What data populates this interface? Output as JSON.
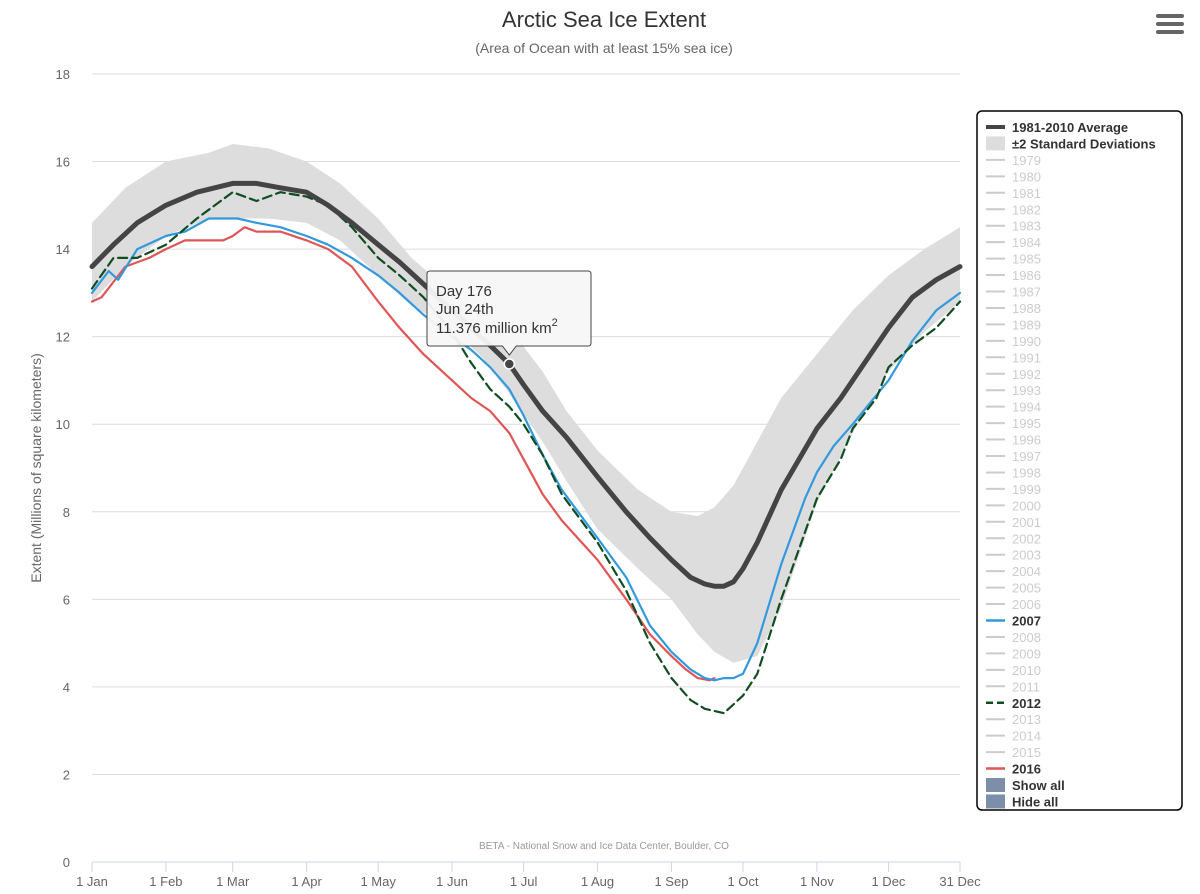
{
  "menu": {
    "icon": "hamburger-menu-icon"
  },
  "colors": {
    "average": "#444444",
    "band": "#dddddd",
    "y2007": "#3399dd",
    "y2012": "#114d22",
    "y2016": "#e05555",
    "dim": "#cccccc",
    "swatch": "#7d8fa8"
  },
  "tooltip": {
    "line1": "Day 176",
    "line2": "Jun 24th",
    "line3": "11.376 million km",
    "sup": "2"
  },
  "chart_data": {
    "type": "line",
    "title": "Arctic Sea Ice Extent",
    "subtitle": "(Area of Ocean with at least 15% sea ice)",
    "ylabel": "Extent (Millions of square kilometers)",
    "xlabel": "",
    "credit": "BETA - National Snow and Ice Data Center, Boulder, CO",
    "ylim": [
      0,
      18
    ],
    "xlim": [
      1,
      365
    ],
    "y_ticks": [
      0,
      2,
      4,
      6,
      8,
      10,
      12,
      14,
      16,
      18
    ],
    "y_tick_labels": [
      "0",
      "2",
      "4",
      "6",
      "8",
      "10",
      "12",
      "14",
      "16",
      "18"
    ],
    "x_ticks": [
      1,
      32,
      60,
      91,
      121,
      152,
      182,
      213,
      244,
      274,
      305,
      335,
      365
    ],
    "x_tick_labels": [
      "1 Jan",
      "1 Feb",
      "1 Mar",
      "1 Apr",
      "1 May",
      "1 Jun",
      "1 Jul",
      "1 Aug",
      "1 Sep",
      "1 Oct",
      "1 Nov",
      "1 Dec",
      "31 Dec"
    ],
    "grid": true,
    "legend_position": "right",
    "highlight": {
      "day": 176,
      "value": 11.376
    },
    "series": [
      {
        "name": "±2 Standard Deviations",
        "type": "band",
        "x": [
          1,
          15,
          32,
          50,
          60,
          75,
          91,
          105,
          121,
          135,
          152,
          165,
          176,
          190,
          200,
          213,
          230,
          244,
          255,
          262,
          270,
          280,
          290,
          305,
          320,
          335,
          350,
          365
        ],
        "upper": [
          14.6,
          15.4,
          16.0,
          16.2,
          16.4,
          16.3,
          16.0,
          15.5,
          14.7,
          13.8,
          13.0,
          12.6,
          12.2,
          11.2,
          10.3,
          9.4,
          8.5,
          8.0,
          7.9,
          8.1,
          8.6,
          9.6,
          10.6,
          11.6,
          12.6,
          13.4,
          14.0,
          14.5
        ],
        "lower": [
          12.8,
          13.6,
          14.3,
          14.7,
          14.7,
          14.7,
          14.6,
          14.2,
          13.4,
          12.7,
          12.2,
          11.5,
          10.7,
          9.6,
          8.7,
          7.6,
          6.7,
          6.0,
          5.2,
          4.8,
          4.55,
          4.7,
          5.8,
          8.2,
          9.8,
          11.2,
          12.1,
          12.8
        ]
      },
      {
        "name": "1981-2010 Average",
        "type": "line",
        "x": [
          1,
          10,
          20,
          32,
          45,
          60,
          70,
          80,
          91,
          100,
          110,
          121,
          130,
          140,
          152,
          160,
          168,
          176,
          182,
          190,
          200,
          213,
          225,
          235,
          244,
          252,
          258,
          262,
          266,
          270,
          274,
          280,
          290,
          305,
          315,
          325,
          335,
          345,
          355,
          365
        ],
        "y": [
          13.6,
          14.1,
          14.6,
          15.0,
          15.3,
          15.5,
          15.5,
          15.4,
          15.3,
          15.0,
          14.6,
          14.1,
          13.7,
          13.2,
          12.6,
          12.2,
          11.8,
          11.376,
          10.9,
          10.3,
          9.7,
          8.8,
          8.0,
          7.4,
          6.9,
          6.5,
          6.35,
          6.3,
          6.3,
          6.4,
          6.7,
          7.3,
          8.5,
          9.9,
          10.6,
          11.4,
          12.2,
          12.9,
          13.3,
          13.6
        ]
      },
      {
        "name": "2007",
        "type": "line",
        "x": [
          1,
          8,
          12,
          20,
          28,
          32,
          40,
          50,
          56,
          62,
          70,
          80,
          91,
          100,
          110,
          121,
          130,
          140,
          152,
          160,
          168,
          176,
          182,
          190,
          198,
          213,
          225,
          235,
          244,
          252,
          258,
          262,
          266,
          270,
          274,
          280,
          290,
          300,
          305,
          312,
          320,
          335,
          345,
          355,
          365
        ],
        "y": [
          13.0,
          13.5,
          13.3,
          14.0,
          14.2,
          14.3,
          14.4,
          14.7,
          14.7,
          14.7,
          14.6,
          14.5,
          14.3,
          14.1,
          13.8,
          13.4,
          13.0,
          12.5,
          12.0,
          11.7,
          11.3,
          10.8,
          10.2,
          9.3,
          8.5,
          7.4,
          6.5,
          5.4,
          4.8,
          4.4,
          4.2,
          4.15,
          4.2,
          4.2,
          4.3,
          5.0,
          6.8,
          8.3,
          8.9,
          9.5,
          10.0,
          11.0,
          11.9,
          12.6,
          13.0
        ]
      },
      {
        "name": "2012",
        "type": "line",
        "dash": true,
        "x": [
          1,
          10,
          20,
          32,
          45,
          60,
          70,
          80,
          91,
          100,
          110,
          121,
          130,
          140,
          152,
          160,
          168,
          176,
          182,
          190,
          198,
          213,
          225,
          235,
          244,
          252,
          258,
          262,
          266,
          270,
          274,
          280,
          290,
          305,
          315,
          320,
          330,
          335,
          345,
          355,
          365
        ],
        "y": [
          13.1,
          13.8,
          13.8,
          14.1,
          14.7,
          15.3,
          15.1,
          15.3,
          15.2,
          15.0,
          14.5,
          13.8,
          13.4,
          12.9,
          12.1,
          11.4,
          10.8,
          10.4,
          10.0,
          9.3,
          8.4,
          7.3,
          6.2,
          5.0,
          4.2,
          3.7,
          3.5,
          3.45,
          3.4,
          3.6,
          3.8,
          4.3,
          6.0,
          8.3,
          9.2,
          9.9,
          10.6,
          11.3,
          11.8,
          12.2,
          12.8
        ]
      },
      {
        "name": "2016",
        "type": "line",
        "x": [
          1,
          5,
          15,
          25,
          32,
          40,
          50,
          56,
          60,
          65,
          70,
          80,
          91,
          100,
          110,
          121,
          130,
          140,
          152,
          160,
          168,
          176,
          182,
          190,
          198,
          213,
          225,
          235,
          244,
          250,
          255,
          260,
          262
        ],
        "y": [
          12.8,
          12.9,
          13.6,
          13.8,
          14.0,
          14.2,
          14.2,
          14.2,
          14.3,
          14.5,
          14.4,
          14.4,
          14.2,
          14.0,
          13.6,
          12.8,
          12.2,
          11.6,
          11.0,
          10.6,
          10.3,
          9.8,
          9.2,
          8.4,
          7.8,
          6.9,
          6.0,
          5.2,
          4.7,
          4.4,
          4.2,
          4.15,
          4.2
        ]
      }
    ]
  },
  "legend": {
    "items": [
      {
        "label": "1981-2010 Average",
        "kind": "line",
        "color": "#444444",
        "active": true
      },
      {
        "label": "±2 Standard Deviations",
        "kind": "band",
        "color": "#dddddd",
        "active": true
      },
      {
        "label": "1979",
        "kind": "line",
        "color": "#cccccc",
        "active": false
      },
      {
        "label": "1980",
        "kind": "line",
        "color": "#cccccc",
        "active": false
      },
      {
        "label": "1981",
        "kind": "line",
        "color": "#cccccc",
        "active": false
      },
      {
        "label": "1982",
        "kind": "line",
        "color": "#cccccc",
        "active": false
      },
      {
        "label": "1983",
        "kind": "line",
        "color": "#cccccc",
        "active": false
      },
      {
        "label": "1984",
        "kind": "line",
        "color": "#cccccc",
        "active": false
      },
      {
        "label": "1985",
        "kind": "line",
        "color": "#cccccc",
        "active": false
      },
      {
        "label": "1986",
        "kind": "line",
        "color": "#cccccc",
        "active": false
      },
      {
        "label": "1987",
        "kind": "line",
        "color": "#cccccc",
        "active": false
      },
      {
        "label": "1988",
        "kind": "line",
        "color": "#cccccc",
        "active": false
      },
      {
        "label": "1989",
        "kind": "line",
        "color": "#cccccc",
        "active": false
      },
      {
        "label": "1990",
        "kind": "line",
        "color": "#cccccc",
        "active": false
      },
      {
        "label": "1991",
        "kind": "line",
        "color": "#cccccc",
        "active": false
      },
      {
        "label": "1992",
        "kind": "line",
        "color": "#cccccc",
        "active": false
      },
      {
        "label": "1993",
        "kind": "line",
        "color": "#cccccc",
        "active": false
      },
      {
        "label": "1994",
        "kind": "line",
        "color": "#cccccc",
        "active": false
      },
      {
        "label": "1995",
        "kind": "line",
        "color": "#cccccc",
        "active": false
      },
      {
        "label": "1996",
        "kind": "line",
        "color": "#cccccc",
        "active": false
      },
      {
        "label": "1997",
        "kind": "line",
        "color": "#cccccc",
        "active": false
      },
      {
        "label": "1998",
        "kind": "line",
        "color": "#cccccc",
        "active": false
      },
      {
        "label": "1999",
        "kind": "line",
        "color": "#cccccc",
        "active": false
      },
      {
        "label": "2000",
        "kind": "line",
        "color": "#cccccc",
        "active": false
      },
      {
        "label": "2001",
        "kind": "line",
        "color": "#cccccc",
        "active": false
      },
      {
        "label": "2002",
        "kind": "line",
        "color": "#cccccc",
        "active": false
      },
      {
        "label": "2003",
        "kind": "line",
        "color": "#cccccc",
        "active": false
      },
      {
        "label": "2004",
        "kind": "line",
        "color": "#cccccc",
        "active": false
      },
      {
        "label": "2005",
        "kind": "line",
        "color": "#cccccc",
        "active": false
      },
      {
        "label": "2006",
        "kind": "line",
        "color": "#cccccc",
        "active": false
      },
      {
        "label": "2007",
        "kind": "line",
        "color": "#3399dd",
        "active": true
      },
      {
        "label": "2008",
        "kind": "line",
        "color": "#cccccc",
        "active": false
      },
      {
        "label": "2009",
        "kind": "line",
        "color": "#cccccc",
        "active": false
      },
      {
        "label": "2010",
        "kind": "line",
        "color": "#cccccc",
        "active": false
      },
      {
        "label": "2011",
        "kind": "line",
        "color": "#cccccc",
        "active": false
      },
      {
        "label": "2012",
        "kind": "dash",
        "color": "#114d22",
        "active": true
      },
      {
        "label": "2013",
        "kind": "line",
        "color": "#cccccc",
        "active": false
      },
      {
        "label": "2014",
        "kind": "line",
        "color": "#cccccc",
        "active": false
      },
      {
        "label": "2015",
        "kind": "line",
        "color": "#cccccc",
        "active": false
      },
      {
        "label": "2016",
        "kind": "line",
        "color": "#e05555",
        "active": true
      },
      {
        "label": "Show all",
        "kind": "button",
        "color": "#7d8fa8",
        "active": true
      },
      {
        "label": "Hide all",
        "kind": "button",
        "color": "#7d8fa8",
        "active": true
      }
    ]
  }
}
